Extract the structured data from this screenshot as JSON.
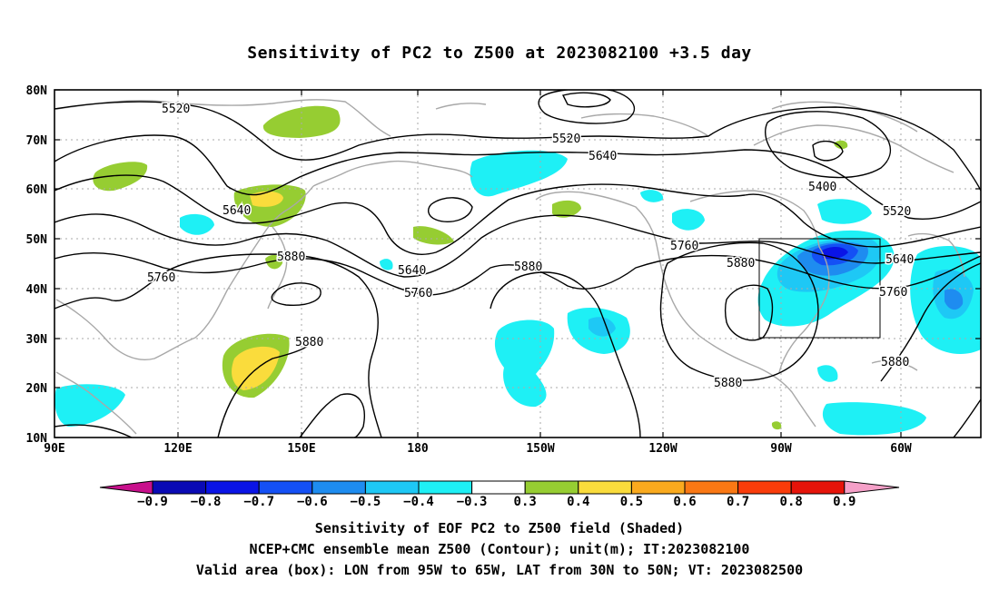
{
  "title": "Sensitivity of PC2 to Z500 at 2023082100 +3.5 day",
  "map": {
    "lat_labels": [
      "80N",
      "70N",
      "60N",
      "50N",
      "40N",
      "30N",
      "20N",
      "10N"
    ],
    "lon_labels": [
      "90E",
      "120E",
      "150E",
      "180",
      "150W",
      "120W",
      "90W",
      "60W"
    ],
    "contour_labels": [
      {
        "text": "5520"
      },
      {
        "text": "5520"
      },
      {
        "text": "5640"
      },
      {
        "text": "5400"
      },
      {
        "text": "5520"
      },
      {
        "text": "5640"
      },
      {
        "text": "5760"
      },
      {
        "text": "5880"
      },
      {
        "text": "5640"
      },
      {
        "text": "5880"
      },
      {
        "text": "5760"
      },
      {
        "text": "5760"
      },
      {
        "text": "5880"
      },
      {
        "text": "5640"
      },
      {
        "text": "5760"
      },
      {
        "text": "5880"
      },
      {
        "text": "5880"
      },
      {
        "text": "5880"
      }
    ],
    "valid_box": {
      "lon_west": "95W",
      "lon_east": "65W",
      "lat_south": "30N",
      "lat_north": "50N"
    }
  },
  "colorbar": {
    "labels": [
      "−0.9",
      "−0.8",
      "−0.7",
      "−0.6",
      "−0.5",
      "−0.4",
      "−0.3",
      "0.3",
      "0.4",
      "0.5",
      "0.6",
      "0.7",
      "0.8",
      "0.9"
    ],
    "colors": {
      "below_min": "#c8108c",
      "bins": [
        "#0a0ab4",
        "#0a14e6",
        "#1450f5",
        "#1e8cf0",
        "#1ec8f5",
        "#1ef0f5",
        "#ffffff",
        "#96cd32",
        "#fadc3c",
        "#faaa1e",
        "#fa7814",
        "#fa3c0a",
        "#e6140a"
      ],
      "above_max": "#f5a0c8"
    }
  },
  "captions": {
    "line1": "Sensitivity of EOF PC2 to Z500 field (Shaded)",
    "line2": "NCEP+CMC ensemble mean Z500 (Contour); unit(m); IT:2023082100",
    "line3": "Valid area (box): LON from 95W to 65W, LAT from 30N to 50N; VT: 2023082500"
  }
}
